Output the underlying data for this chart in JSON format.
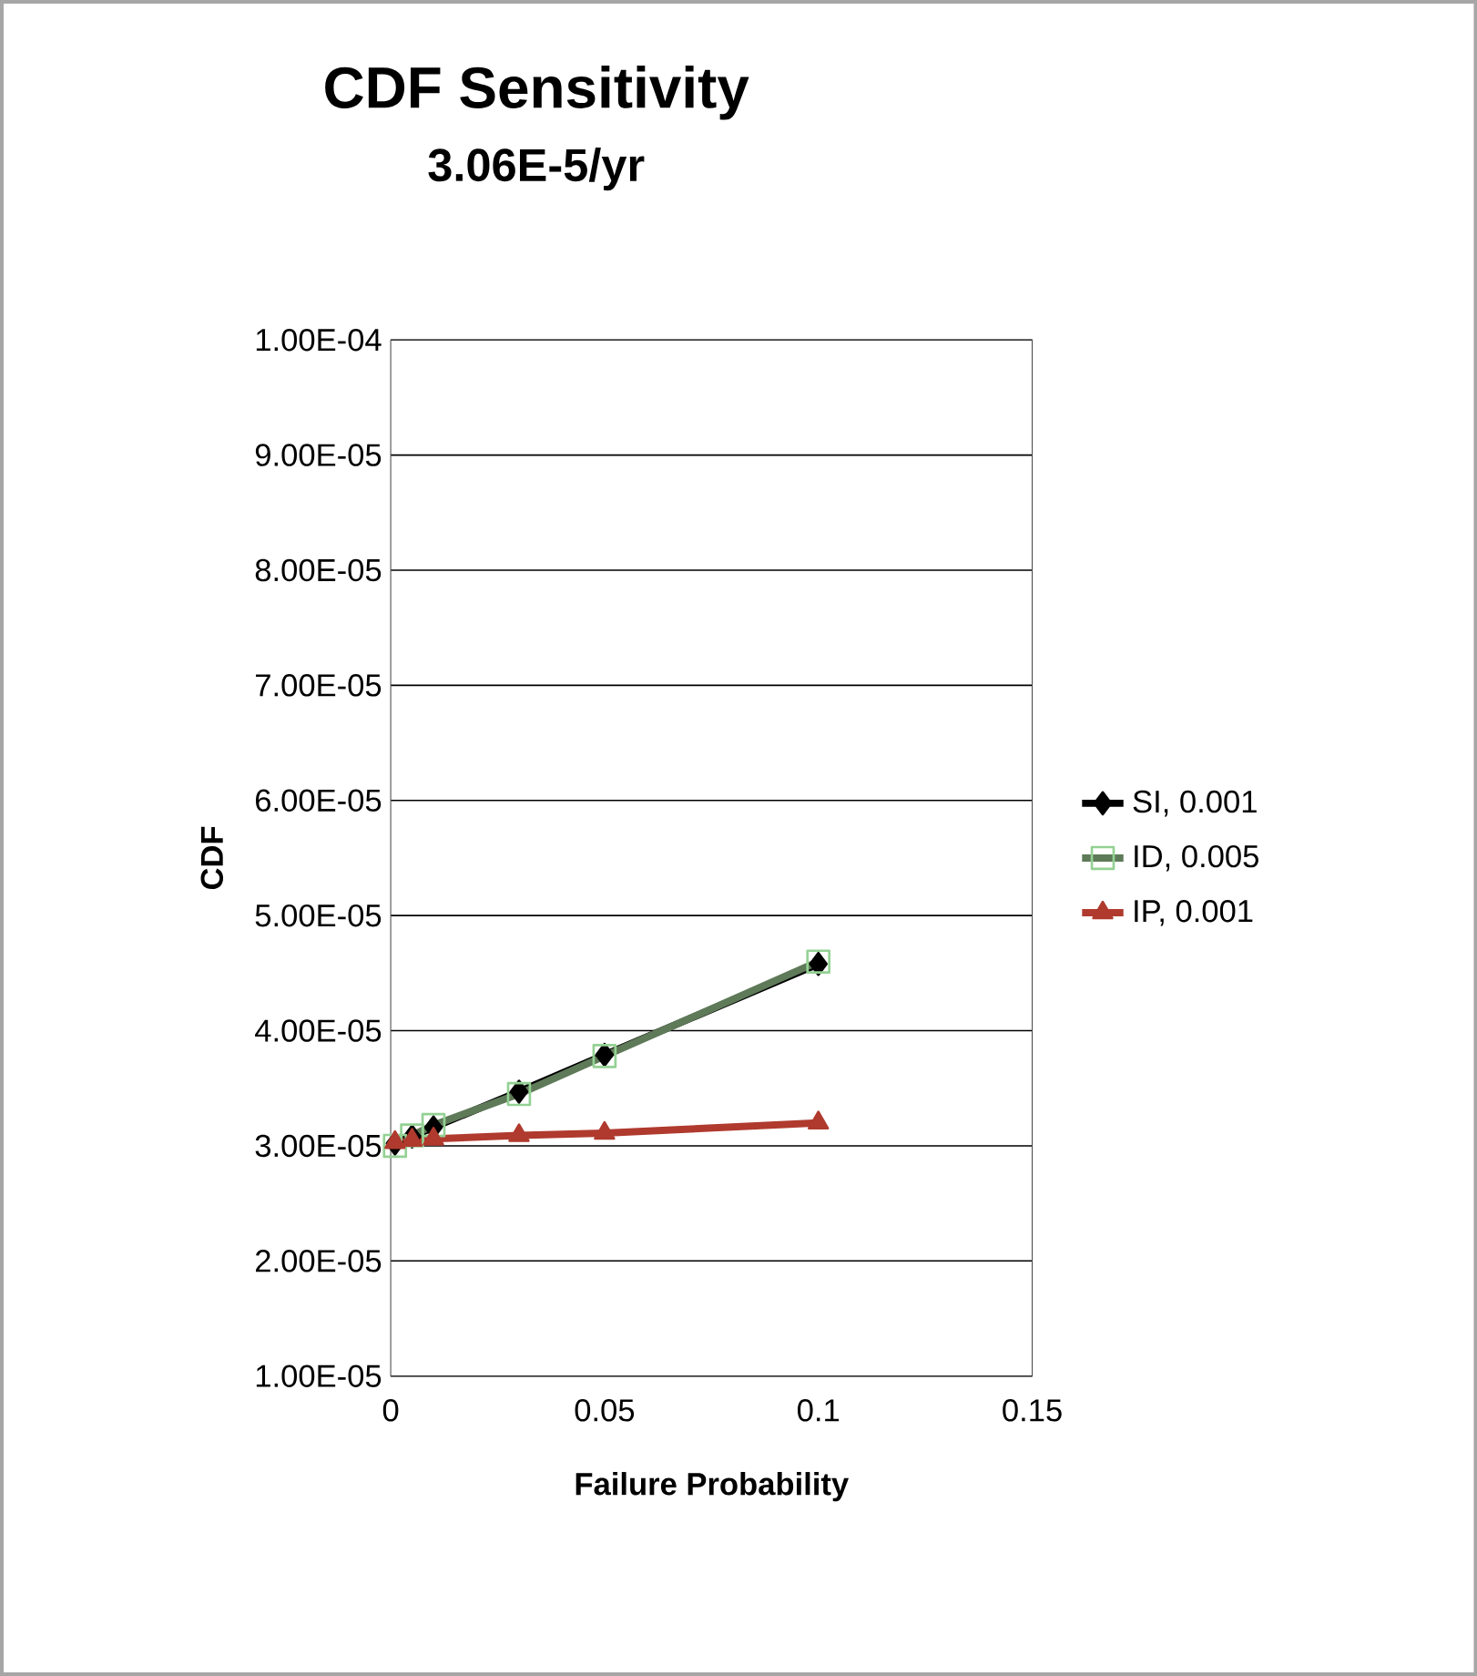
{
  "chart_data": {
    "type": "line",
    "title": "CDF Sensitivity",
    "subtitle": "3.06E-5/yr",
    "xlabel": "Failure Probability",
    "ylabel": "CDF",
    "x": [
      0.001,
      0.005,
      0.01,
      0.03,
      0.05,
      0.1
    ],
    "series": [
      {
        "name": "SI, 0.001",
        "color": "#000000",
        "marker": "diamond",
        "values": [
          3.02e-05,
          3.08e-05,
          3.16e-05,
          3.47e-05,
          3.79e-05,
          4.58e-05
        ]
      },
      {
        "name": "ID, 0.005",
        "color": "#5e7a58",
        "marker": "square",
        "values": [
          3e-05,
          3.09e-05,
          3.18e-05,
          3.45e-05,
          3.78e-05,
          4.6e-05
        ]
      },
      {
        "name": "IP, 0.001",
        "color": "#b03a2e",
        "marker": "triangle",
        "values": [
          3.03e-05,
          3.05e-05,
          3.06e-05,
          3.09e-05,
          3.11e-05,
          3.2e-05
        ]
      }
    ],
    "xlim": [
      0,
      0.15
    ],
    "xticks": [
      0,
      0.05,
      0.1,
      0.15
    ],
    "ylim": [
      1e-05,
      0.0001
    ],
    "yticks": [
      {
        "value": 1e-05,
        "label": "1.00E-05"
      },
      {
        "value": 2e-05,
        "label": "2.00E-05"
      },
      {
        "value": 3e-05,
        "label": "3.00E-05"
      },
      {
        "value": 4e-05,
        "label": "4.00E-05"
      },
      {
        "value": 5e-05,
        "label": "5.00E-05"
      },
      {
        "value": 6e-05,
        "label": "6.00E-05"
      },
      {
        "value": 7e-05,
        "label": "7.00E-05"
      },
      {
        "value": 8e-05,
        "label": "8.00E-05"
      },
      {
        "value": 9e-05,
        "label": "9.00E-05"
      },
      {
        "value": 0.0001,
        "label": "1.00E-04"
      }
    ],
    "grid": "y",
    "legend": "right",
    "line_style": "solid"
  }
}
